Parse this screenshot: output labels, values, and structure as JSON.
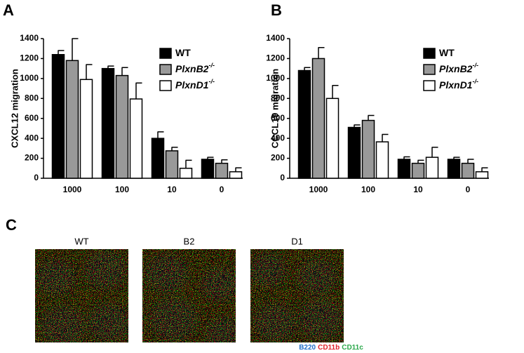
{
  "chart_data": [
    {
      "type": "bar",
      "panel": "A",
      "ylabel": "CXCL12 migration",
      "categories": [
        "1000",
        "100",
        "10",
        "0"
      ],
      "ylim": [
        0,
        1400
      ],
      "yticks": [
        0,
        200,
        400,
        600,
        800,
        1000,
        1200,
        1400
      ],
      "series": [
        {
          "name": "WT",
          "color": "#000000",
          "values": [
            1240,
            1100,
            400,
            190
          ],
          "errors": [
            40,
            25,
            65,
            20
          ]
        },
        {
          "name": "PlxnB2",
          "superscript": "-/-",
          "color": "#999999",
          "values": [
            1180,
            1030,
            275,
            150
          ],
          "errors": [
            220,
            80,
            35,
            35
          ]
        },
        {
          "name": "PlxnD1",
          "superscript": "-/-",
          "color": "#ffffff",
          "values": [
            990,
            795,
            100,
            65
          ],
          "errors": [
            150,
            160,
            80,
            40
          ]
        }
      ]
    },
    {
      "type": "bar",
      "panel": "B",
      "ylabel": "CCCL19 migration",
      "categories": [
        "1000",
        "100",
        "10",
        "0"
      ],
      "ylim": [
        0,
        1400
      ],
      "yticks": [
        0,
        200,
        400,
        600,
        800,
        1000,
        1200,
        1400
      ],
      "series": [
        {
          "name": "WT",
          "color": "#000000",
          "values": [
            1080,
            510,
            190,
            190
          ],
          "errors": [
            30,
            25,
            25,
            20
          ]
        },
        {
          "name": "PlxnB2",
          "superscript": "-/-",
          "color": "#999999",
          "values": [
            1200,
            580,
            150,
            150
          ],
          "errors": [
            110,
            50,
            30,
            40
          ]
        },
        {
          "name": "PlxnD1",
          "superscript": "-/-",
          "color": "#ffffff",
          "values": [
            800,
            365,
            210,
            65
          ],
          "errors": [
            130,
            75,
            100,
            40
          ]
        }
      ]
    }
  ],
  "panel_c": {
    "label": "C",
    "images": [
      "WT",
      "B2",
      "D1"
    ],
    "markers": [
      {
        "text": "B220",
        "color": "#1f6fc9"
      },
      {
        "text": "CD11b",
        "color": "#e0202a"
      },
      {
        "text": "CD11c",
        "color": "#2aa84a"
      }
    ]
  }
}
